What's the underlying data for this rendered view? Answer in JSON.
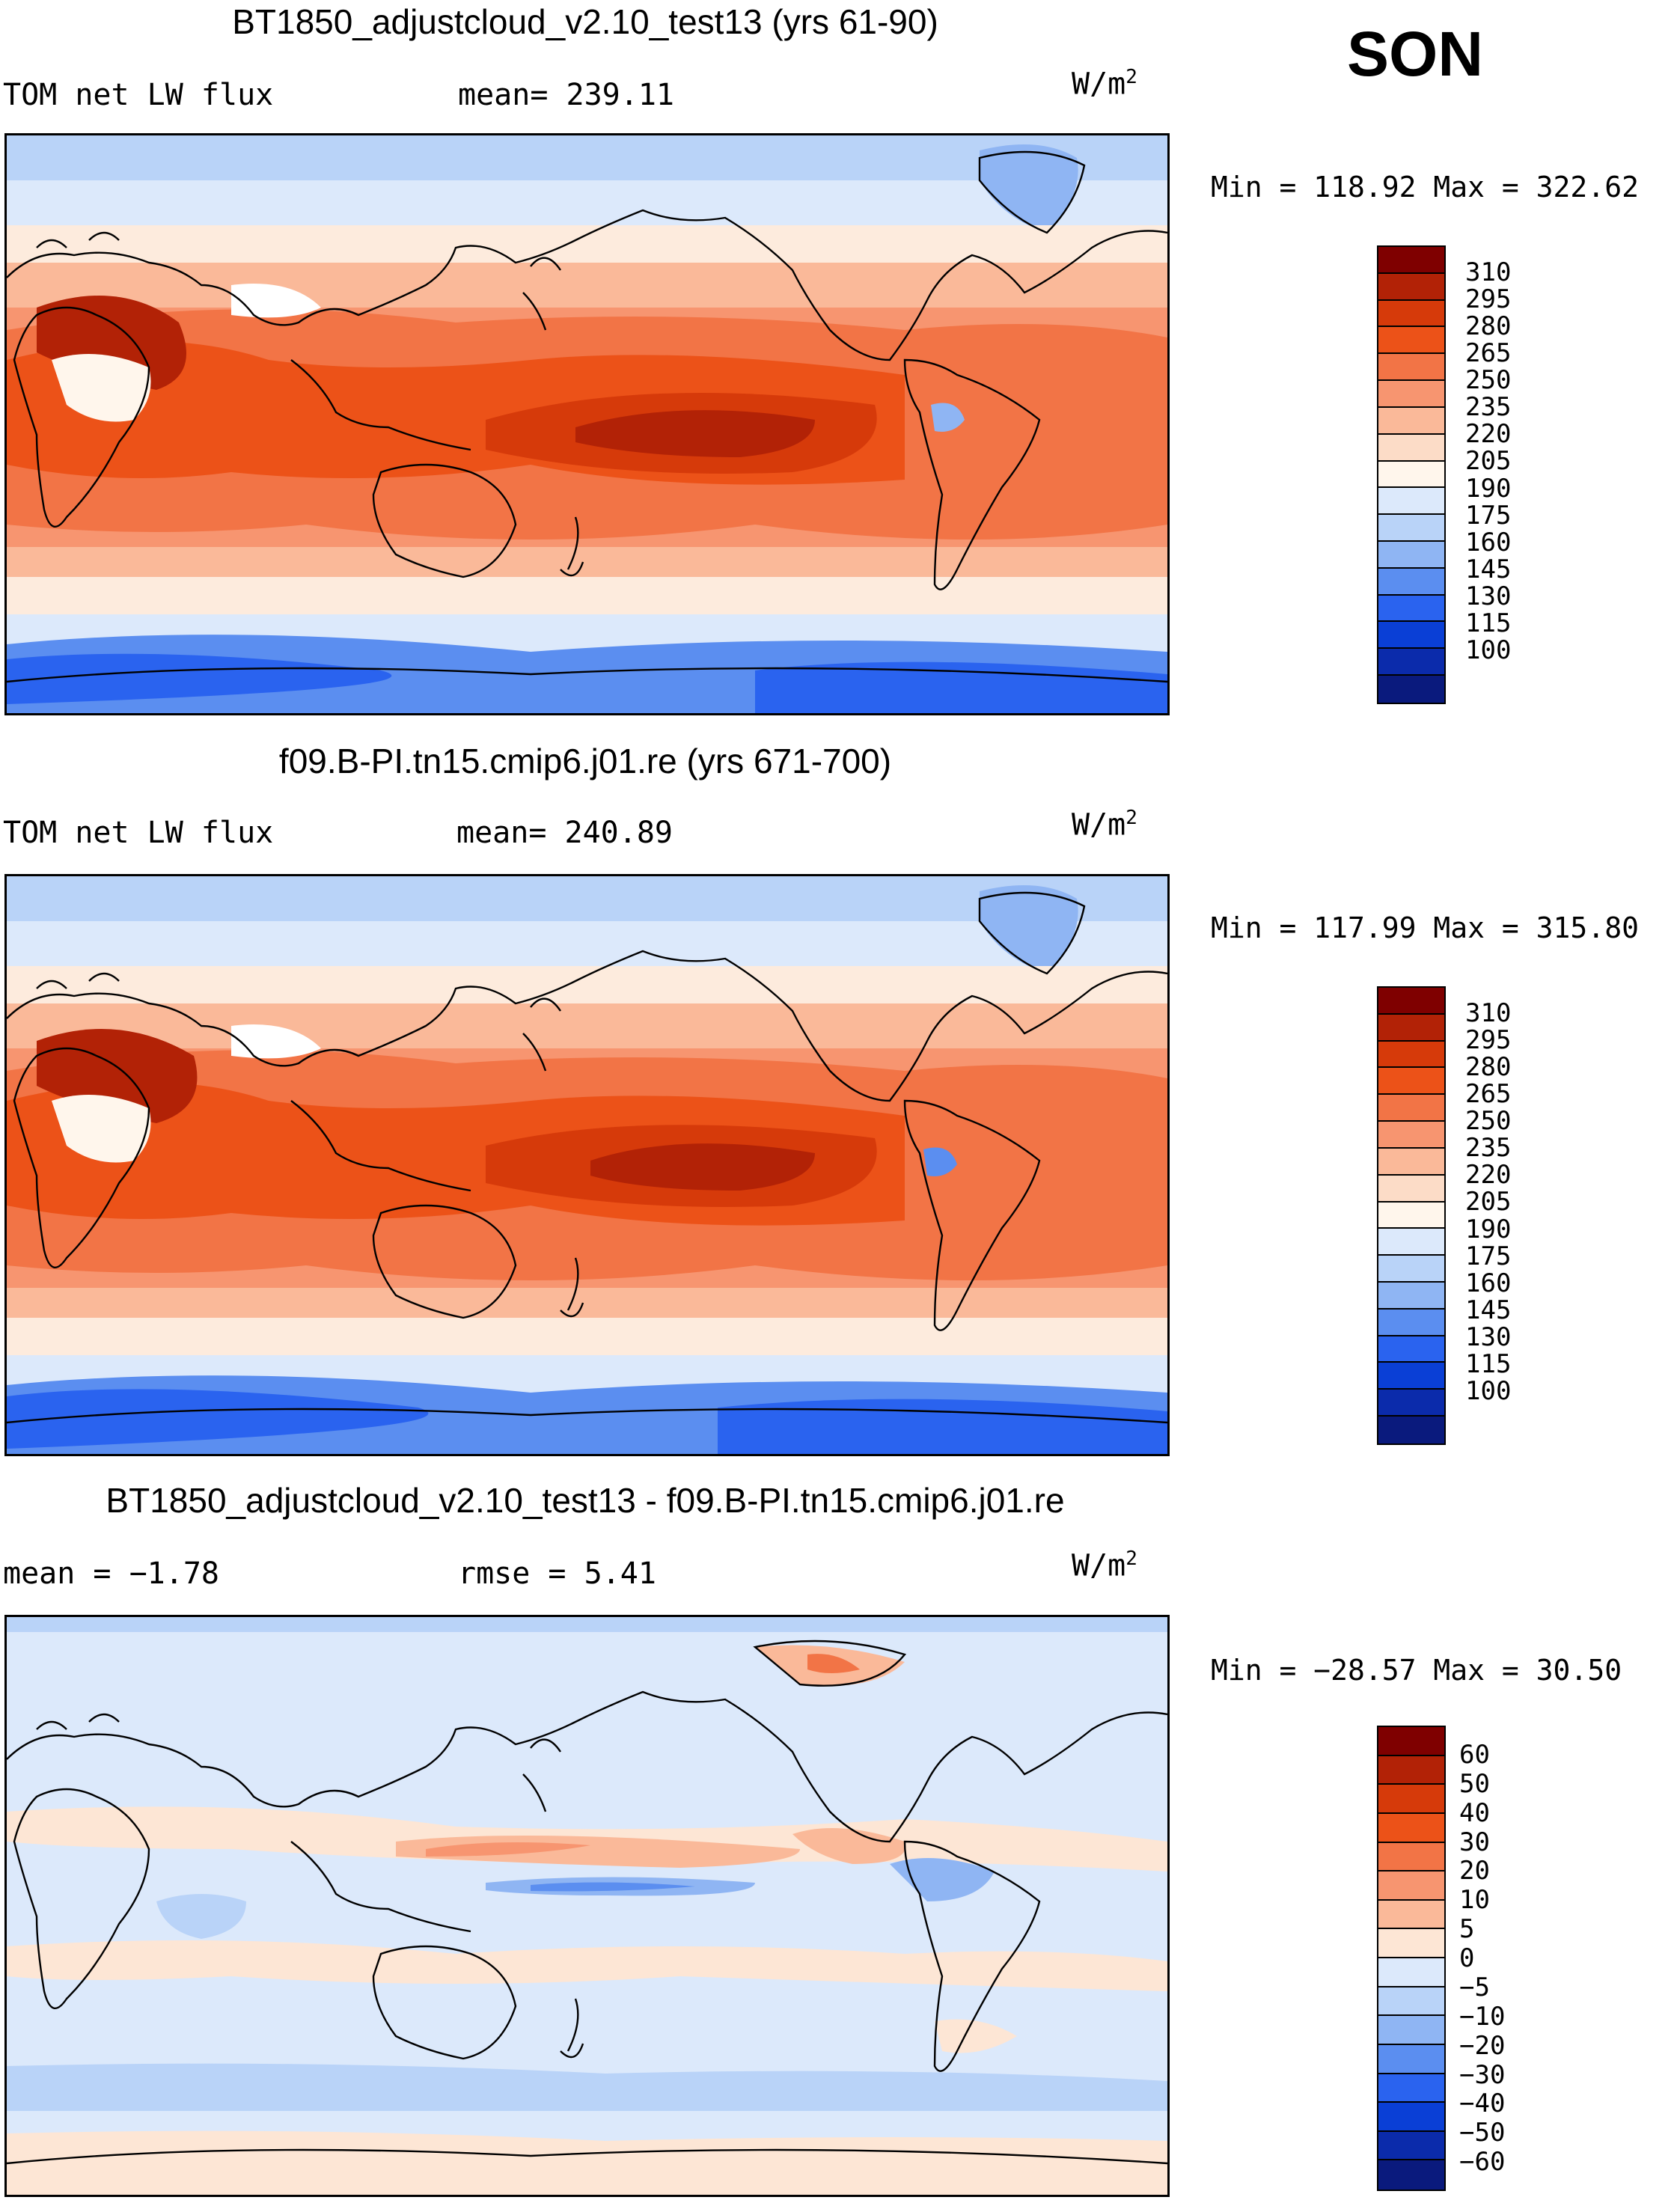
{
  "season": "SON",
  "panels": [
    {
      "title": "BT1850_adjustcloud_v2.10_test13 (yrs 61-90)",
      "left_label": "TOM net LW flux",
      "center_label": "mean= 239.11",
      "units": "W/m",
      "units_exp": "2",
      "minmax": "Min = 118.92 Max = 322.62"
    },
    {
      "title": "f09.B-PI.tn15.cmip6.j01.re (yrs 671-700)",
      "left_label": "TOM net LW flux",
      "center_label": "mean= 240.89",
      "units": "W/m",
      "units_exp": "2",
      "minmax": "Min = 117.99 Max = 315.80"
    },
    {
      "title": "BT1850_adjustcloud_v2.10_test13 - f09.B-PI.tn15.cmip6.j01.re",
      "left_label": "mean =  −1.78",
      "center_label": "rmse =    5.41",
      "units": "W/m",
      "units_exp": "2",
      "minmax": "Min = −28.57 Max =  30.50"
    }
  ],
  "colorbars": {
    "absolute": {
      "labels": [
        "310",
        "295",
        "280",
        "265",
        "250",
        "235",
        "220",
        "205",
        "190",
        "175",
        "160",
        "145",
        "130",
        "115",
        "100"
      ],
      "colors": [
        "#7f0000",
        "#b22206",
        "#d63a0a",
        "#ec5218",
        "#f27446",
        "#f79570",
        "#fab999",
        "#fcdcc7",
        "#fff6ec",
        "#dce9fb",
        "#b9d3f8",
        "#8fb5f3",
        "#5b8ef0",
        "#2a63ef",
        "#0a3fd6",
        "#0b2bab",
        "#0a1a7d"
      ]
    },
    "difference": {
      "labels": [
        "60",
        "50",
        "40",
        "30",
        "20",
        "10",
        "5",
        "0",
        "−5",
        "−10",
        "−20",
        "−30",
        "−40",
        "−50",
        "−60"
      ],
      "colors": [
        "#7f0000",
        "#b22206",
        "#d63a0a",
        "#ec5218",
        "#f27446",
        "#f79570",
        "#fab999",
        "#fde6d5",
        "#dce9fb",
        "#b9d3f8",
        "#8fb5f3",
        "#5b8ef0",
        "#2a63ef",
        "#0a3fd6",
        "#0b2bab",
        "#0a1a7d"
      ]
    }
  },
  "chart_data": [
    {
      "type": "heatmap",
      "title": "BT1850_adjustcloud_v2.10_test13 (yrs 61-90)",
      "variable": "TOM net LW flux",
      "units": "W/m2",
      "mean": 239.11,
      "min": 118.92,
      "max": 322.62,
      "contour_levels": [
        100,
        115,
        130,
        145,
        160,
        175,
        190,
        205,
        220,
        235,
        250,
        265,
        280,
        295,
        310
      ]
    },
    {
      "type": "heatmap",
      "title": "f09.B-PI.tn15.cmip6.j01.re (yrs 671-700)",
      "variable": "TOM net LW flux",
      "units": "W/m2",
      "mean": 240.89,
      "min": 117.99,
      "max": 315.8,
      "contour_levels": [
        100,
        115,
        130,
        145,
        160,
        175,
        190,
        205,
        220,
        235,
        250,
        265,
        280,
        295,
        310
      ]
    },
    {
      "type": "heatmap",
      "title": "BT1850_adjustcloud_v2.10_test13 - f09.B-PI.tn15.cmip6.j01.re",
      "units": "W/m2",
      "mean": -1.78,
      "rmse": 5.41,
      "min": -28.57,
      "max": 30.5,
      "contour_levels": [
        -60,
        -50,
        -40,
        -30,
        -20,
        -10,
        -5,
        0,
        5,
        10,
        20,
        30,
        40,
        50,
        60
      ]
    }
  ]
}
